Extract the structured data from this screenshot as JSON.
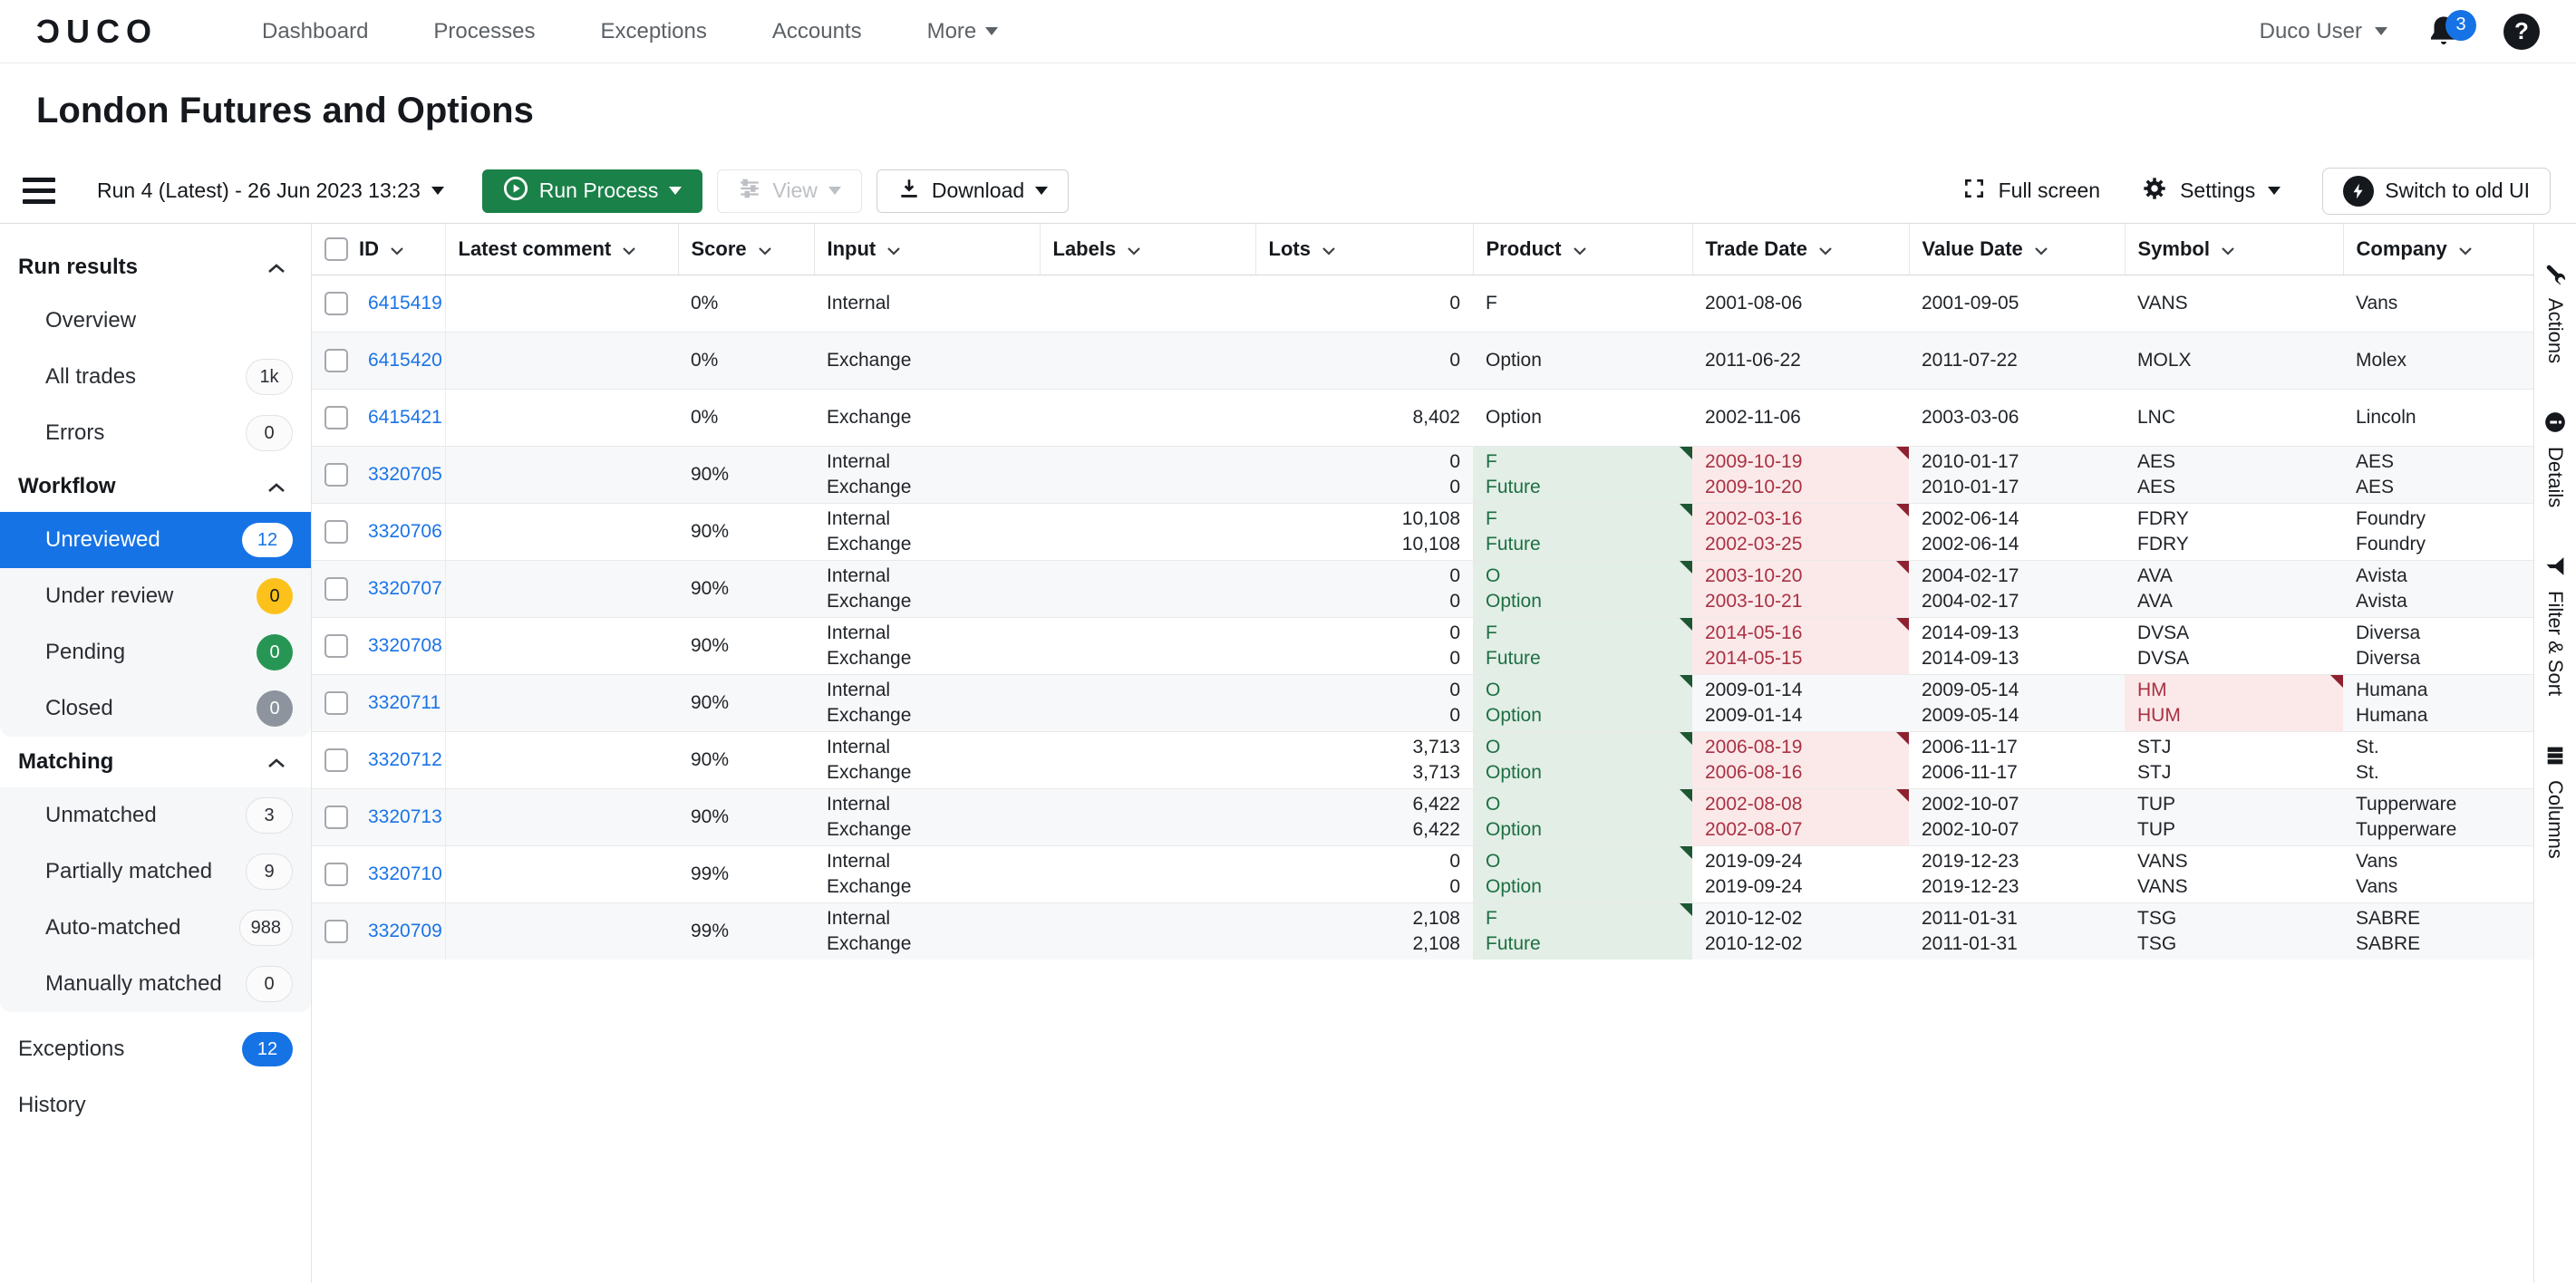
{
  "nav": {
    "logo": "ƆUCO",
    "items": [
      {
        "label": "Dashboard",
        "caret": false
      },
      {
        "label": "Processes",
        "caret": false
      },
      {
        "label": "Exceptions",
        "caret": false
      },
      {
        "label": "Accounts",
        "caret": false
      },
      {
        "label": "More",
        "caret": true
      }
    ],
    "user": "Duco User",
    "notification_count": "3",
    "help_label": "?"
  },
  "page": {
    "title": "London Futures and Options"
  },
  "toolbar": {
    "run_selector": "Run 4 (Latest) - 26 Jun 2023 13:23",
    "run_process_label": "Run Process",
    "view_label": "View",
    "download_label": "Download",
    "full_screen_label": "Full screen",
    "settings_label": "Settings",
    "switch_old_ui_label": "Switch to old UI"
  },
  "sidebar": {
    "groups": [
      {
        "header": "Run results",
        "shaded": false,
        "items": [
          {
            "label": "Overview"
          },
          {
            "label": "All trades",
            "badge": "1k",
            "style": "outline"
          },
          {
            "label": "Errors",
            "badge": "0",
            "style": "outline"
          }
        ]
      },
      {
        "header": "Workflow",
        "shaded": true,
        "items": [
          {
            "label": "Unreviewed",
            "badge": "12",
            "style": "white",
            "selected": true
          },
          {
            "label": "Under review",
            "badge": "0",
            "style": "yellow"
          },
          {
            "label": "Pending",
            "badge": "0",
            "style": "green"
          },
          {
            "label": "Closed",
            "badge": "0",
            "style": "gray"
          }
        ]
      },
      {
        "header": "Matching",
        "shaded": true,
        "items": [
          {
            "label": "Unmatched",
            "badge": "3",
            "style": "outline"
          },
          {
            "label": "Partially matched",
            "badge": "9",
            "style": "outline"
          },
          {
            "label": "Auto-matched",
            "badge": "988",
            "style": "outline"
          },
          {
            "label": "Manually matched",
            "badge": "0",
            "style": "outline"
          }
        ]
      }
    ],
    "footer_items": [
      {
        "label": "Exceptions",
        "badge": "12",
        "style": "blue"
      },
      {
        "label": "History"
      }
    ]
  },
  "table": {
    "columns": [
      "ID",
      "Latest comment",
      "Score",
      "Input",
      "Labels",
      "Lots",
      "Product",
      "Trade Date",
      "Value Date",
      "Symbol",
      "Company"
    ],
    "rows": [
      {
        "id": "6415419",
        "comment": "",
        "score": "0%",
        "input": [
          "Internal"
        ],
        "labels": "",
        "lots": [
          "0"
        ],
        "product": [
          "F"
        ],
        "product_green": false,
        "trade_date": [
          "2001-08-06"
        ],
        "trade_date_red": false,
        "value_date": [
          "2001-09-05"
        ],
        "symbol": [
          "VANS"
        ],
        "symbol_red": false,
        "company": [
          "Vans"
        ]
      },
      {
        "id": "6415420",
        "comment": "",
        "score": "0%",
        "input": [
          "Exchange"
        ],
        "labels": "",
        "lots": [
          "0"
        ],
        "product": [
          "Option"
        ],
        "product_green": false,
        "trade_date": [
          "2011-06-22"
        ],
        "trade_date_red": false,
        "value_date": [
          "2011-07-22"
        ],
        "symbol": [
          "MOLX"
        ],
        "symbol_red": false,
        "company": [
          "Molex"
        ]
      },
      {
        "id": "6415421",
        "comment": "",
        "score": "0%",
        "input": [
          "Exchange"
        ],
        "labels": "",
        "lots": [
          "8,402"
        ],
        "product": [
          "Option"
        ],
        "product_green": false,
        "trade_date": [
          "2002-11-06"
        ],
        "trade_date_red": false,
        "value_date": [
          "2003-03-06"
        ],
        "symbol": [
          "LNC"
        ],
        "symbol_red": false,
        "company": [
          "Lincoln"
        ]
      },
      {
        "id": "3320705",
        "comment": "",
        "score": "90%",
        "input": [
          "Internal",
          "Exchange"
        ],
        "labels": "",
        "lots": [
          "0",
          "0"
        ],
        "product": [
          "F",
          "Future"
        ],
        "product_green": true,
        "trade_date": [
          "2009-10-19",
          "2009-10-20"
        ],
        "trade_date_red": true,
        "value_date": [
          "2010-01-17",
          "2010-01-17"
        ],
        "symbol": [
          "AES",
          "AES"
        ],
        "symbol_red": false,
        "company": [
          "AES",
          "AES"
        ]
      },
      {
        "id": "3320706",
        "comment": "",
        "score": "90%",
        "input": [
          "Internal",
          "Exchange"
        ],
        "labels": "",
        "lots": [
          "10,108",
          "10,108"
        ],
        "product": [
          "F",
          "Future"
        ],
        "product_green": true,
        "trade_date": [
          "2002-03-16",
          "2002-03-25"
        ],
        "trade_date_red": true,
        "value_date": [
          "2002-06-14",
          "2002-06-14"
        ],
        "symbol": [
          "FDRY",
          "FDRY"
        ],
        "symbol_red": false,
        "company": [
          "Foundry",
          "Foundry"
        ]
      },
      {
        "id": "3320707",
        "comment": "",
        "score": "90%",
        "input": [
          "Internal",
          "Exchange"
        ],
        "labels": "",
        "lots": [
          "0",
          "0"
        ],
        "product": [
          "O",
          "Option"
        ],
        "product_green": true,
        "trade_date": [
          "2003-10-20",
          "2003-10-21"
        ],
        "trade_date_red": true,
        "value_date": [
          "2004-02-17",
          "2004-02-17"
        ],
        "symbol": [
          "AVA",
          "AVA"
        ],
        "symbol_red": false,
        "company": [
          "Avista",
          "Avista"
        ]
      },
      {
        "id": "3320708",
        "comment": "",
        "score": "90%",
        "input": [
          "Internal",
          "Exchange"
        ],
        "labels": "",
        "lots": [
          "0",
          "0"
        ],
        "product": [
          "F",
          "Future"
        ],
        "product_green": true,
        "trade_date": [
          "2014-05-16",
          "2014-05-15"
        ],
        "trade_date_red": true,
        "value_date": [
          "2014-09-13",
          "2014-09-13"
        ],
        "symbol": [
          "DVSA",
          "DVSA"
        ],
        "symbol_red": false,
        "company": [
          "Diversa",
          "Diversa"
        ]
      },
      {
        "id": "3320711",
        "comment": "",
        "score": "90%",
        "input": [
          "Internal",
          "Exchange"
        ],
        "labels": "",
        "lots": [
          "0",
          "0"
        ],
        "product": [
          "O",
          "Option"
        ],
        "product_green": true,
        "trade_date": [
          "2009-01-14",
          "2009-01-14"
        ],
        "trade_date_red": false,
        "value_date": [
          "2009-05-14",
          "2009-05-14"
        ],
        "symbol": [
          "HM",
          "HUM"
        ],
        "symbol_red": true,
        "company": [
          "Humana",
          "Humana"
        ]
      },
      {
        "id": "3320712",
        "comment": "",
        "score": "90%",
        "input": [
          "Internal",
          "Exchange"
        ],
        "labels": "",
        "lots": [
          "3,713",
          "3,713"
        ],
        "product": [
          "O",
          "Option"
        ],
        "product_green": true,
        "trade_date": [
          "2006-08-19",
          "2006-08-16"
        ],
        "trade_date_red": true,
        "value_date": [
          "2006-11-17",
          "2006-11-17"
        ],
        "symbol": [
          "STJ",
          "STJ"
        ],
        "symbol_red": false,
        "company": [
          "St.",
          "St."
        ]
      },
      {
        "id": "3320713",
        "comment": "",
        "score": "90%",
        "input": [
          "Internal",
          "Exchange"
        ],
        "labels": "",
        "lots": [
          "6,422",
          "6,422"
        ],
        "product": [
          "O",
          "Option"
        ],
        "product_green": true,
        "trade_date": [
          "2002-08-08",
          "2002-08-07"
        ],
        "trade_date_red": true,
        "value_date": [
          "2002-10-07",
          "2002-10-07"
        ],
        "symbol": [
          "TUP",
          "TUP"
        ],
        "symbol_red": false,
        "company": [
          "Tupperware",
          "Tupperware"
        ]
      },
      {
        "id": "3320710",
        "comment": "",
        "score": "99%",
        "input": [
          "Internal",
          "Exchange"
        ],
        "labels": "",
        "lots": [
          "0",
          "0"
        ],
        "product": [
          "O",
          "Option"
        ],
        "product_green": true,
        "trade_date": [
          "2019-09-24",
          "2019-09-24"
        ],
        "trade_date_red": false,
        "value_date": [
          "2019-12-23",
          "2019-12-23"
        ],
        "symbol": [
          "VANS",
          "VANS"
        ],
        "symbol_red": false,
        "company": [
          "Vans",
          "Vans"
        ]
      },
      {
        "id": "3320709",
        "comment": "",
        "score": "99%",
        "input": [
          "Internal",
          "Exchange"
        ],
        "labels": "",
        "lots": [
          "2,108",
          "2,108"
        ],
        "product": [
          "F",
          "Future"
        ],
        "product_green": true,
        "trade_date": [
          "2010-12-02",
          "2010-12-02"
        ],
        "trade_date_red": false,
        "value_date": [
          "2011-01-31",
          "2011-01-31"
        ],
        "symbol": [
          "TSG",
          "TSG"
        ],
        "symbol_red": false,
        "company": [
          "SABRE",
          "SABRE"
        ]
      }
    ]
  },
  "rail": {
    "tabs": [
      {
        "label": "Actions",
        "icon": "wrench-icon"
      },
      {
        "label": "Details",
        "icon": "info-icon"
      },
      {
        "label": "Filter & Sort",
        "icon": "filter-icon"
      },
      {
        "label": "Columns",
        "icon": "columns-icon"
      }
    ]
  },
  "colors": {
    "accent_blue": "#1673e6",
    "brand_green": "#1a8148",
    "cell_green_bg": "#e2eee6",
    "cell_green_text": "#1e6f43",
    "cell_red_bg": "#fbe9ea",
    "cell_red_text": "#a93142",
    "badge_yellow": "#fcc21b",
    "badge_green": "#279655",
    "badge_gray": "#8d949e"
  }
}
